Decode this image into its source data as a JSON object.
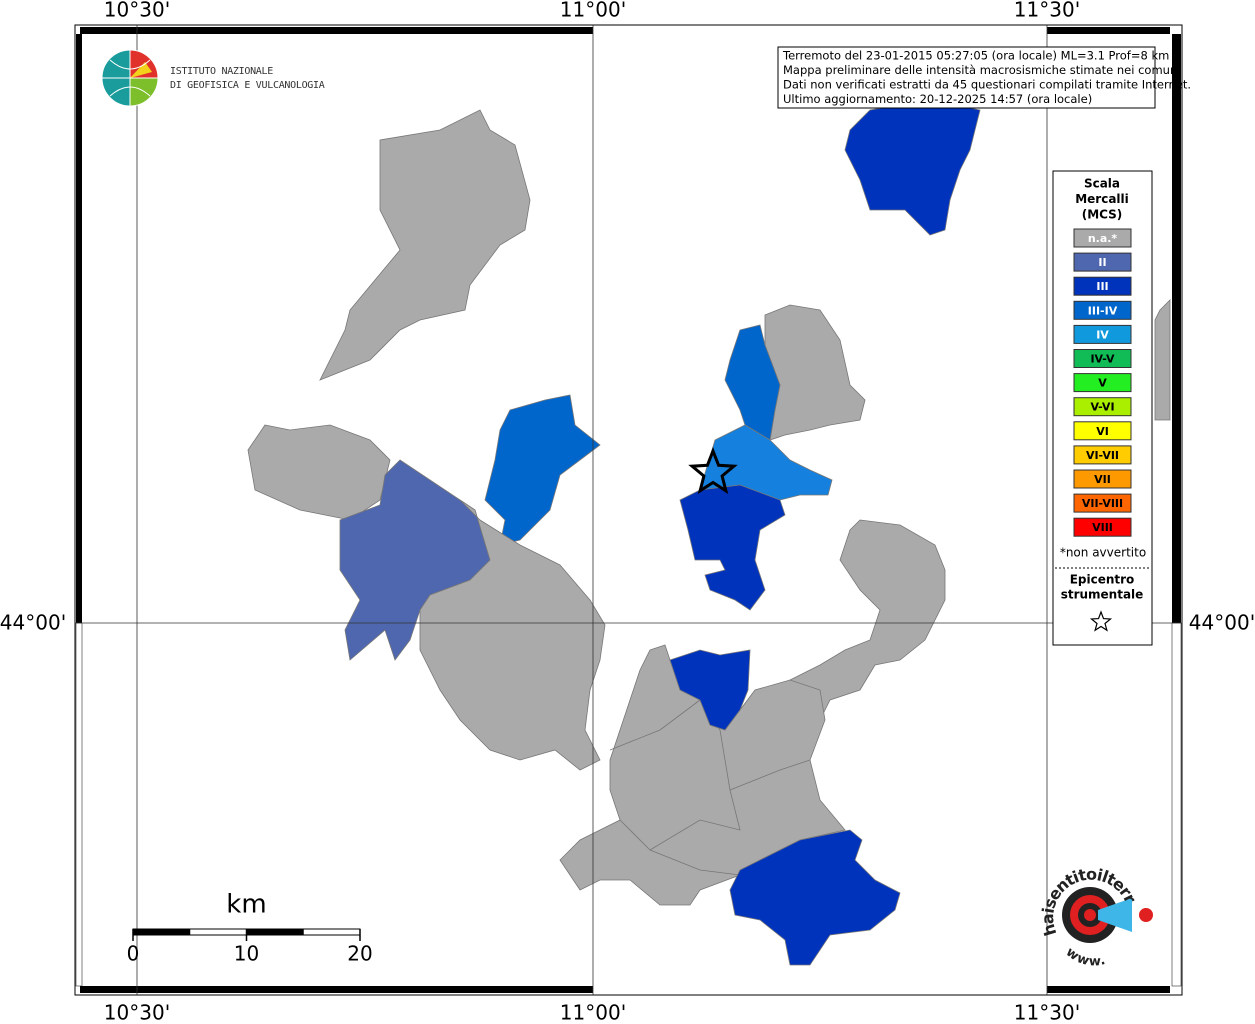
{
  "map": {
    "lon_labels": [
      "10°30'",
      "11°00'",
      "11°30'"
    ],
    "lat_labels": [
      "44°00'"
    ],
    "info": [
      "Terremoto del 23-01-2015 05:27:05 (ora locale) ML=3.1 Prof=8 km",
      "Mappa preliminare delle intensità macrosismiche stimate nei comuni",
      "Dati non verificati estratti da 45 questionari compilati tramite Internet.",
      "Ultimo aggiornamento: 20-12-2025 14:57 (ora locale)"
    ],
    "logo_ingv": [
      "ISTITUTO NAZIONALE",
      "DI GEOFISICA E VULCANOLOGIA"
    ],
    "legend": {
      "title": [
        "Scala",
        "Mercalli",
        "(MCS)"
      ],
      "entries": [
        {
          "label": "n.a.*",
          "color": "#aaaaaa"
        },
        {
          "label": "II",
          "color": "#4f67ae"
        },
        {
          "label": "III",
          "color": "#0033bb"
        },
        {
          "label": "III-IV",
          "color": "#0066cc"
        },
        {
          "label": "IV",
          "color": "#1199dd"
        },
        {
          "label": "IV-V",
          "color": "#11bb55"
        },
        {
          "label": "V",
          "color": "#22ee22"
        },
        {
          "label": "V-VI",
          "color": "#aaee00"
        },
        {
          "label": "VI",
          "color": "#ffff00"
        },
        {
          "label": "VI-VII",
          "color": "#ffcc00"
        },
        {
          "label": "VII",
          "color": "#ff9900"
        },
        {
          "label": "VII-VIII",
          "color": "#ff6600"
        },
        {
          "label": "VIII",
          "color": "#ff0000"
        }
      ],
      "note": "*non avvertito",
      "epicenter": [
        "Epicentro",
        "strumentale"
      ]
    },
    "scale_bar": {
      "unit": "km",
      "ticks": [
        0,
        10,
        20
      ]
    },
    "logo_hsit": {
      "text": "haisentitoilterremoto.it",
      "www": "www."
    }
  }
}
